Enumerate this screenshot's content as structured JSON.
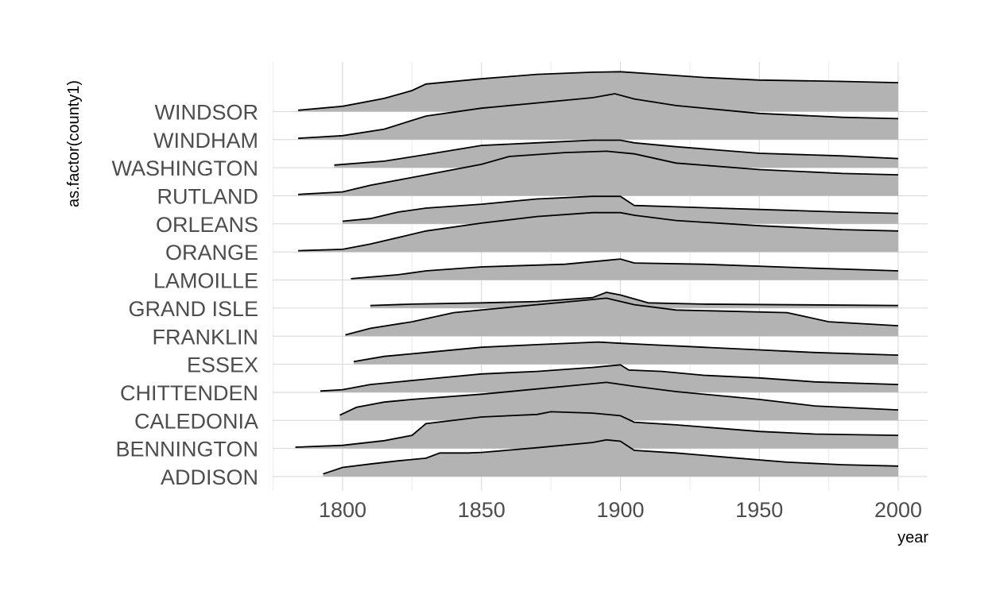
{
  "chart_data": {
    "type": "ridgeline",
    "title": "",
    "xlabel": "year",
    "ylabel": "as.factor(county1)",
    "xlim": [
      1775,
      2010
    ],
    "x_ticks": [
      1800,
      1850,
      1900,
      1950,
      2000
    ],
    "fill_color": "#b3b3b3",
    "line_color": "#000000",
    "grid": true,
    "series": [
      {
        "name": "ADDISON",
        "points": [
          [
            1793,
            0.1
          ],
          [
            1800,
            0.35
          ],
          [
            1810,
            0.48
          ],
          [
            1820,
            0.6
          ],
          [
            1830,
            0.7
          ],
          [
            1835,
            0.9
          ],
          [
            1845,
            0.9
          ],
          [
            1850,
            0.92
          ],
          [
            1870,
            1.1
          ],
          [
            1890,
            1.3
          ],
          [
            1895,
            1.4
          ],
          [
            1900,
            1.35
          ],
          [
            1905,
            1.0
          ],
          [
            1920,
            0.9
          ],
          [
            1940,
            0.72
          ],
          [
            1960,
            0.55
          ],
          [
            1980,
            0.45
          ],
          [
            2000,
            0.4
          ]
        ]
      },
      {
        "name": "BENNINGTON",
        "points": [
          [
            1783,
            0.05
          ],
          [
            1800,
            0.12
          ],
          [
            1815,
            0.3
          ],
          [
            1825,
            0.5
          ],
          [
            1830,
            0.95
          ],
          [
            1850,
            1.2
          ],
          [
            1870,
            1.3
          ],
          [
            1875,
            1.4
          ],
          [
            1890,
            1.35
          ],
          [
            1900,
            1.25
          ],
          [
            1905,
            1.0
          ],
          [
            1920,
            0.9
          ],
          [
            1950,
            0.65
          ],
          [
            1970,
            0.55
          ],
          [
            2000,
            0.5
          ]
        ]
      },
      {
        "name": "CALEDONIA",
        "points": [
          [
            1799,
            0.2
          ],
          [
            1805,
            0.5
          ],
          [
            1815,
            0.7
          ],
          [
            1825,
            0.8
          ],
          [
            1850,
            1.0
          ],
          [
            1870,
            1.2
          ],
          [
            1880,
            1.3
          ],
          [
            1895,
            1.45
          ],
          [
            1905,
            1.3
          ],
          [
            1920,
            1.1
          ],
          [
            1950,
            0.8
          ],
          [
            1970,
            0.55
          ],
          [
            2000,
            0.4
          ]
        ]
      },
      {
        "name": "CHITTENDEN",
        "points": [
          [
            1792,
            0.05
          ],
          [
            1800,
            0.1
          ],
          [
            1810,
            0.3
          ],
          [
            1830,
            0.5
          ],
          [
            1850,
            0.7
          ],
          [
            1870,
            0.8
          ],
          [
            1890,
            0.95
          ],
          [
            1900,
            1.05
          ],
          [
            1903,
            0.85
          ],
          [
            1915,
            0.8
          ],
          [
            1930,
            0.65
          ],
          [
            1950,
            0.55
          ],
          [
            1970,
            0.4
          ],
          [
            2000,
            0.3
          ]
        ]
      },
      {
        "name": "ESSEX",
        "points": [
          [
            1804,
            0.1
          ],
          [
            1815,
            0.3
          ],
          [
            1830,
            0.45
          ],
          [
            1850,
            0.65
          ],
          [
            1870,
            0.75
          ],
          [
            1892,
            0.85
          ],
          [
            1900,
            0.8
          ],
          [
            1910,
            0.75
          ],
          [
            1930,
            0.65
          ],
          [
            1950,
            0.55
          ],
          [
            1970,
            0.45
          ],
          [
            2000,
            0.35
          ]
        ]
      },
      {
        "name": "FRANKLIN",
        "points": [
          [
            1801,
            0.05
          ],
          [
            1810,
            0.3
          ],
          [
            1825,
            0.55
          ],
          [
            1840,
            0.9
          ],
          [
            1860,
            1.1
          ],
          [
            1880,
            1.3
          ],
          [
            1895,
            1.45
          ],
          [
            1905,
            1.2
          ],
          [
            1920,
            1.0
          ],
          [
            1960,
            0.9
          ],
          [
            1975,
            0.55
          ],
          [
            2000,
            0.4
          ]
        ]
      },
      {
        "name": "GRAND ISLE",
        "points": [
          [
            1810,
            0.1
          ],
          [
            1825,
            0.15
          ],
          [
            1850,
            0.2
          ],
          [
            1870,
            0.25
          ],
          [
            1890,
            0.4
          ],
          [
            1895,
            0.6
          ],
          [
            1900,
            0.5
          ],
          [
            1910,
            0.2
          ],
          [
            1930,
            0.15
          ],
          [
            2000,
            0.1
          ]
        ]
      },
      {
        "name": "LAMOILLE",
        "points": [
          [
            1803,
            0.05
          ],
          [
            1820,
            0.2
          ],
          [
            1830,
            0.35
          ],
          [
            1850,
            0.5
          ],
          [
            1880,
            0.6
          ],
          [
            1895,
            0.75
          ],
          [
            1900,
            0.8
          ],
          [
            1905,
            0.65
          ],
          [
            1930,
            0.6
          ],
          [
            1970,
            0.45
          ],
          [
            2000,
            0.35
          ]
        ]
      },
      {
        "name": "ORANGE",
        "points": [
          [
            1784,
            0.05
          ],
          [
            1800,
            0.1
          ],
          [
            1810,
            0.3
          ],
          [
            1830,
            0.8
          ],
          [
            1850,
            1.1
          ],
          [
            1870,
            1.35
          ],
          [
            1890,
            1.5
          ],
          [
            1900,
            1.5
          ],
          [
            1905,
            1.4
          ],
          [
            1920,
            1.2
          ],
          [
            1950,
            1.0
          ],
          [
            1980,
            0.85
          ],
          [
            2000,
            0.8
          ]
        ]
      },
      {
        "name": "ORLEANS",
        "points": [
          [
            1800,
            0.1
          ],
          [
            1810,
            0.2
          ],
          [
            1820,
            0.45
          ],
          [
            1830,
            0.6
          ],
          [
            1850,
            0.75
          ],
          [
            1870,
            0.95
          ],
          [
            1890,
            1.05
          ],
          [
            1900,
            1.05
          ],
          [
            1905,
            0.7
          ],
          [
            1920,
            0.65
          ],
          [
            1950,
            0.55
          ],
          [
            1980,
            0.45
          ],
          [
            2000,
            0.4
          ]
        ]
      },
      {
        "name": "RUTLAND",
        "points": [
          [
            1784,
            0.05
          ],
          [
            1800,
            0.15
          ],
          [
            1810,
            0.4
          ],
          [
            1830,
            0.8
          ],
          [
            1850,
            1.2
          ],
          [
            1860,
            1.5
          ],
          [
            1880,
            1.65
          ],
          [
            1895,
            1.7
          ],
          [
            1905,
            1.6
          ],
          [
            1920,
            1.25
          ],
          [
            1950,
            1.0
          ],
          [
            1980,
            0.85
          ],
          [
            2000,
            0.8
          ]
        ]
      },
      {
        "name": "WASHINGTON",
        "points": [
          [
            1797,
            0.1
          ],
          [
            1815,
            0.25
          ],
          [
            1830,
            0.5
          ],
          [
            1850,
            0.85
          ],
          [
            1870,
            0.95
          ],
          [
            1890,
            1.05
          ],
          [
            1900,
            1.05
          ],
          [
            1905,
            0.95
          ],
          [
            1920,
            0.8
          ],
          [
            1950,
            0.55
          ],
          [
            1980,
            0.45
          ],
          [
            2000,
            0.35
          ]
        ]
      },
      {
        "name": "WINDHAM",
        "points": [
          [
            1784,
            0.05
          ],
          [
            1800,
            0.15
          ],
          [
            1815,
            0.4
          ],
          [
            1830,
            0.9
          ],
          [
            1850,
            1.2
          ],
          [
            1870,
            1.4
          ],
          [
            1890,
            1.6
          ],
          [
            1898,
            1.75
          ],
          [
            1905,
            1.55
          ],
          [
            1920,
            1.3
          ],
          [
            1950,
            1.0
          ],
          [
            1980,
            0.85
          ],
          [
            2000,
            0.8
          ]
        ]
      },
      {
        "name": "WINDSOR",
        "points": [
          [
            1784,
            0.05
          ],
          [
            1800,
            0.2
          ],
          [
            1815,
            0.5
          ],
          [
            1825,
            0.8
          ],
          [
            1830,
            1.05
          ],
          [
            1850,
            1.25
          ],
          [
            1870,
            1.42
          ],
          [
            1890,
            1.5
          ],
          [
            1900,
            1.52
          ],
          [
            1910,
            1.45
          ],
          [
            1930,
            1.3
          ],
          [
            1950,
            1.2
          ],
          [
            1980,
            1.15
          ],
          [
            2000,
            1.1
          ]
        ]
      }
    ]
  }
}
